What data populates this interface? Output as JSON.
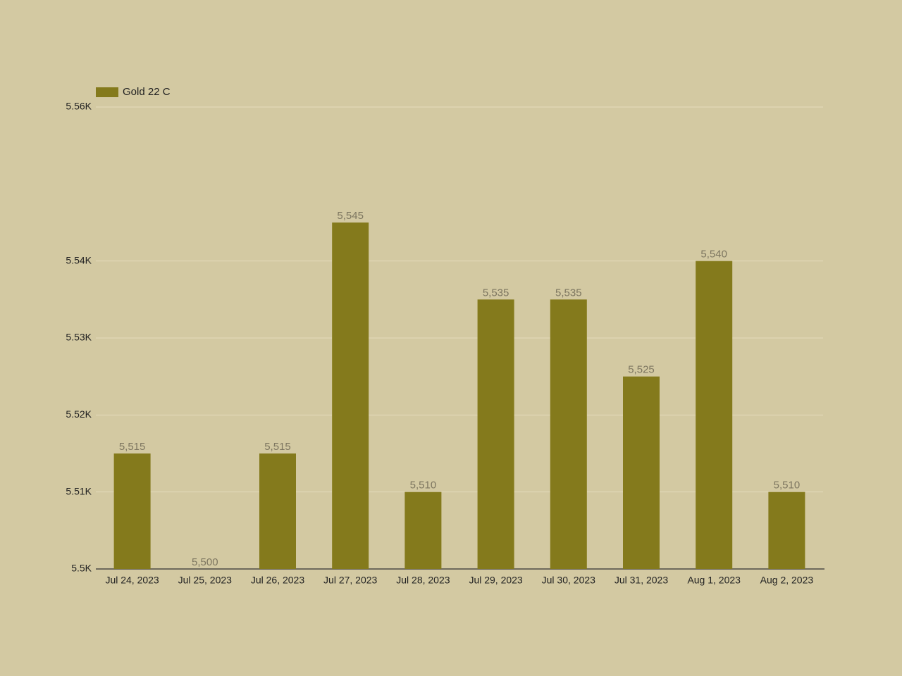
{
  "chart_data": {
    "type": "bar",
    "categories": [
      "Jul 24, 2023",
      "Jul 25, 2023",
      "Jul 26, 2023",
      "Jul 27, 2023",
      "Jul 28, 2023",
      "Jul 29, 2023",
      "Jul 30, 2023",
      "Jul 31, 2023",
      "Aug 1, 2023",
      "Aug 2, 2023"
    ],
    "series": [
      {
        "name": "Gold 22 C",
        "color": "#847a1c",
        "values": [
          5515,
          5500,
          5515,
          5545,
          5510,
          5535,
          5535,
          5525,
          5540,
          5510
        ],
        "value_labels": [
          "5,515",
          "5,500",
          "5,515",
          "5,545",
          "5,510",
          "5,535",
          "5,535",
          "5,525",
          "5,540",
          "5,510"
        ]
      }
    ],
    "ylim": [
      5500,
      5560
    ],
    "yticks": [
      {
        "value": 5500,
        "label": "5.5K"
      },
      {
        "value": 5510,
        "label": "5.51K"
      },
      {
        "value": 5520,
        "label": "5.52K"
      },
      {
        "value": 5530,
        "label": "5.53K"
      },
      {
        "value": 5540,
        "label": "5.54K"
      },
      {
        "value": 5560,
        "label": "5.56K"
      }
    ],
    "grid": true,
    "legend": "top-left"
  }
}
